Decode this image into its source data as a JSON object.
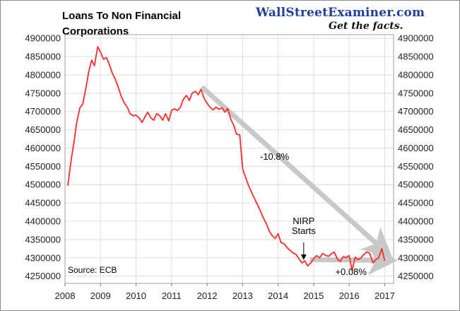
{
  "brand": {
    "name": "WallStreetExaminer.com",
    "tagline": "Get the facts."
  },
  "chart_data": {
    "type": "line",
    "title_lines": [
      "Loans To Non Financial",
      "Corporations"
    ],
    "source": "Source: ECB",
    "xlabel": "",
    "ylabel": "",
    "xlim": [
      2008.0,
      2017.25
    ],
    "ylim": [
      4230000,
      4910000
    ],
    "x_ticks": [
      2008,
      2009,
      2010,
      2011,
      2012,
      2013,
      2014,
      2015,
      2016,
      2017
    ],
    "y_ticks": [
      4250000,
      4300000,
      4350000,
      4400000,
      4450000,
      4500000,
      4550000,
      4600000,
      4650000,
      4700000,
      4750000,
      4800000,
      4850000,
      4900000
    ],
    "y_axes": [
      "left",
      "right"
    ],
    "grid": true,
    "series": [
      {
        "color": "#ff2a2a",
        "x": [
          2008.08,
          2008.17,
          2008.25,
          2008.33,
          2008.42,
          2008.5,
          2008.58,
          2008.67,
          2008.75,
          2008.83,
          2008.92,
          2009.0,
          2009.08,
          2009.17,
          2009.25,
          2009.33,
          2009.42,
          2009.5,
          2009.58,
          2009.67,
          2009.75,
          2009.83,
          2009.92,
          2010.0,
          2010.08,
          2010.17,
          2010.25,
          2010.33,
          2010.42,
          2010.5,
          2010.58,
          2010.67,
          2010.75,
          2010.83,
          2010.92,
          2011.0,
          2011.08,
          2011.17,
          2011.25,
          2011.33,
          2011.42,
          2011.5,
          2011.58,
          2011.67,
          2011.75,
          2011.83,
          2011.92,
          2012.0,
          2012.08,
          2012.17,
          2012.25,
          2012.33,
          2012.42,
          2012.5,
          2012.58,
          2012.67,
          2012.75,
          2012.83,
          2012.92,
          2013.0,
          2013.08,
          2013.17,
          2013.25,
          2013.33,
          2013.42,
          2013.5,
          2013.58,
          2013.67,
          2013.75,
          2013.83,
          2013.92,
          2014.0,
          2014.08,
          2014.17,
          2014.25,
          2014.33,
          2014.42,
          2014.5,
          2014.58,
          2014.67,
          2014.75,
          2014.83,
          2014.92,
          2015.0,
          2015.08,
          2015.17,
          2015.25,
          2015.33,
          2015.42,
          2015.5,
          2015.58,
          2015.67,
          2015.75,
          2015.83,
          2015.92,
          2016.0,
          2016.08,
          2016.17,
          2016.25,
          2016.33,
          2016.42,
          2016.5,
          2016.58,
          2016.67,
          2016.75,
          2016.83,
          2016.92,
          2017.0
        ],
        "y": [
          4497000,
          4565000,
          4615000,
          4670000,
          4710000,
          4720000,
          4760000,
          4810000,
          4840000,
          4825000,
          4877000,
          4862000,
          4843000,
          4847000,
          4828000,
          4805000,
          4787000,
          4766000,
          4742000,
          4723000,
          4712000,
          4694000,
          4688000,
          4690000,
          4683000,
          4670000,
          4685000,
          4698000,
          4682000,
          4676000,
          4694000,
          4688000,
          4676000,
          4694000,
          4674000,
          4703000,
          4707000,
          4703000,
          4712000,
          4733000,
          4744000,
          4730000,
          4750000,
          4755000,
          4746000,
          4760000,
          4735000,
          4722000,
          4712000,
          4704000,
          4712000,
          4706000,
          4710000,
          4698000,
          4708000,
          4678000,
          4662000,
          4638000,
          4636000,
          4543000,
          4521000,
          4497000,
          4480000,
          4463000,
          4445000,
          4428000,
          4410000,
          4393000,
          4373000,
          4361000,
          4353000,
          4366000,
          4342000,
          4338000,
          4328000,
          4321000,
          4313000,
          4310000,
          4298000,
          4286000,
          4292000,
          4278000,
          4286000,
          4298000,
          4306000,
          4300000,
          4312000,
          4307000,
          4304000,
          4311000,
          4316000,
          4296000,
          4290000,
          4303000,
          4301000,
          4306000,
          4265000,
          4302000,
          4295000,
          4300000,
          4310000,
          4316000,
          4312000,
          4286000,
          4295000,
          4300000,
          4325000,
          4292000
        ]
      }
    ],
    "annotations": [
      {
        "text": "-10.8%",
        "x": 2013.9,
        "y": 4568000
      },
      {
        "text": "NIRP",
        "x": 2014.72,
        "y": 4392000
      },
      {
        "text": "Starts",
        "x": 2014.72,
        "y": 4365000
      },
      {
        "text": "+0.08%",
        "x": 2016.05,
        "y": 4253000
      }
    ],
    "arrows": [
      {
        "from": [
          2011.85,
          4767000
        ],
        "to": [
          2016.95,
          4323000
        ]
      },
      {
        "from": [
          2014.9,
          4295000
        ],
        "to": [
          2017.0,
          4293000
        ]
      },
      {
        "from": [
          2014.72,
          4342000
        ],
        "to": [
          2014.72,
          4298000
        ],
        "style": "thin"
      }
    ]
  }
}
